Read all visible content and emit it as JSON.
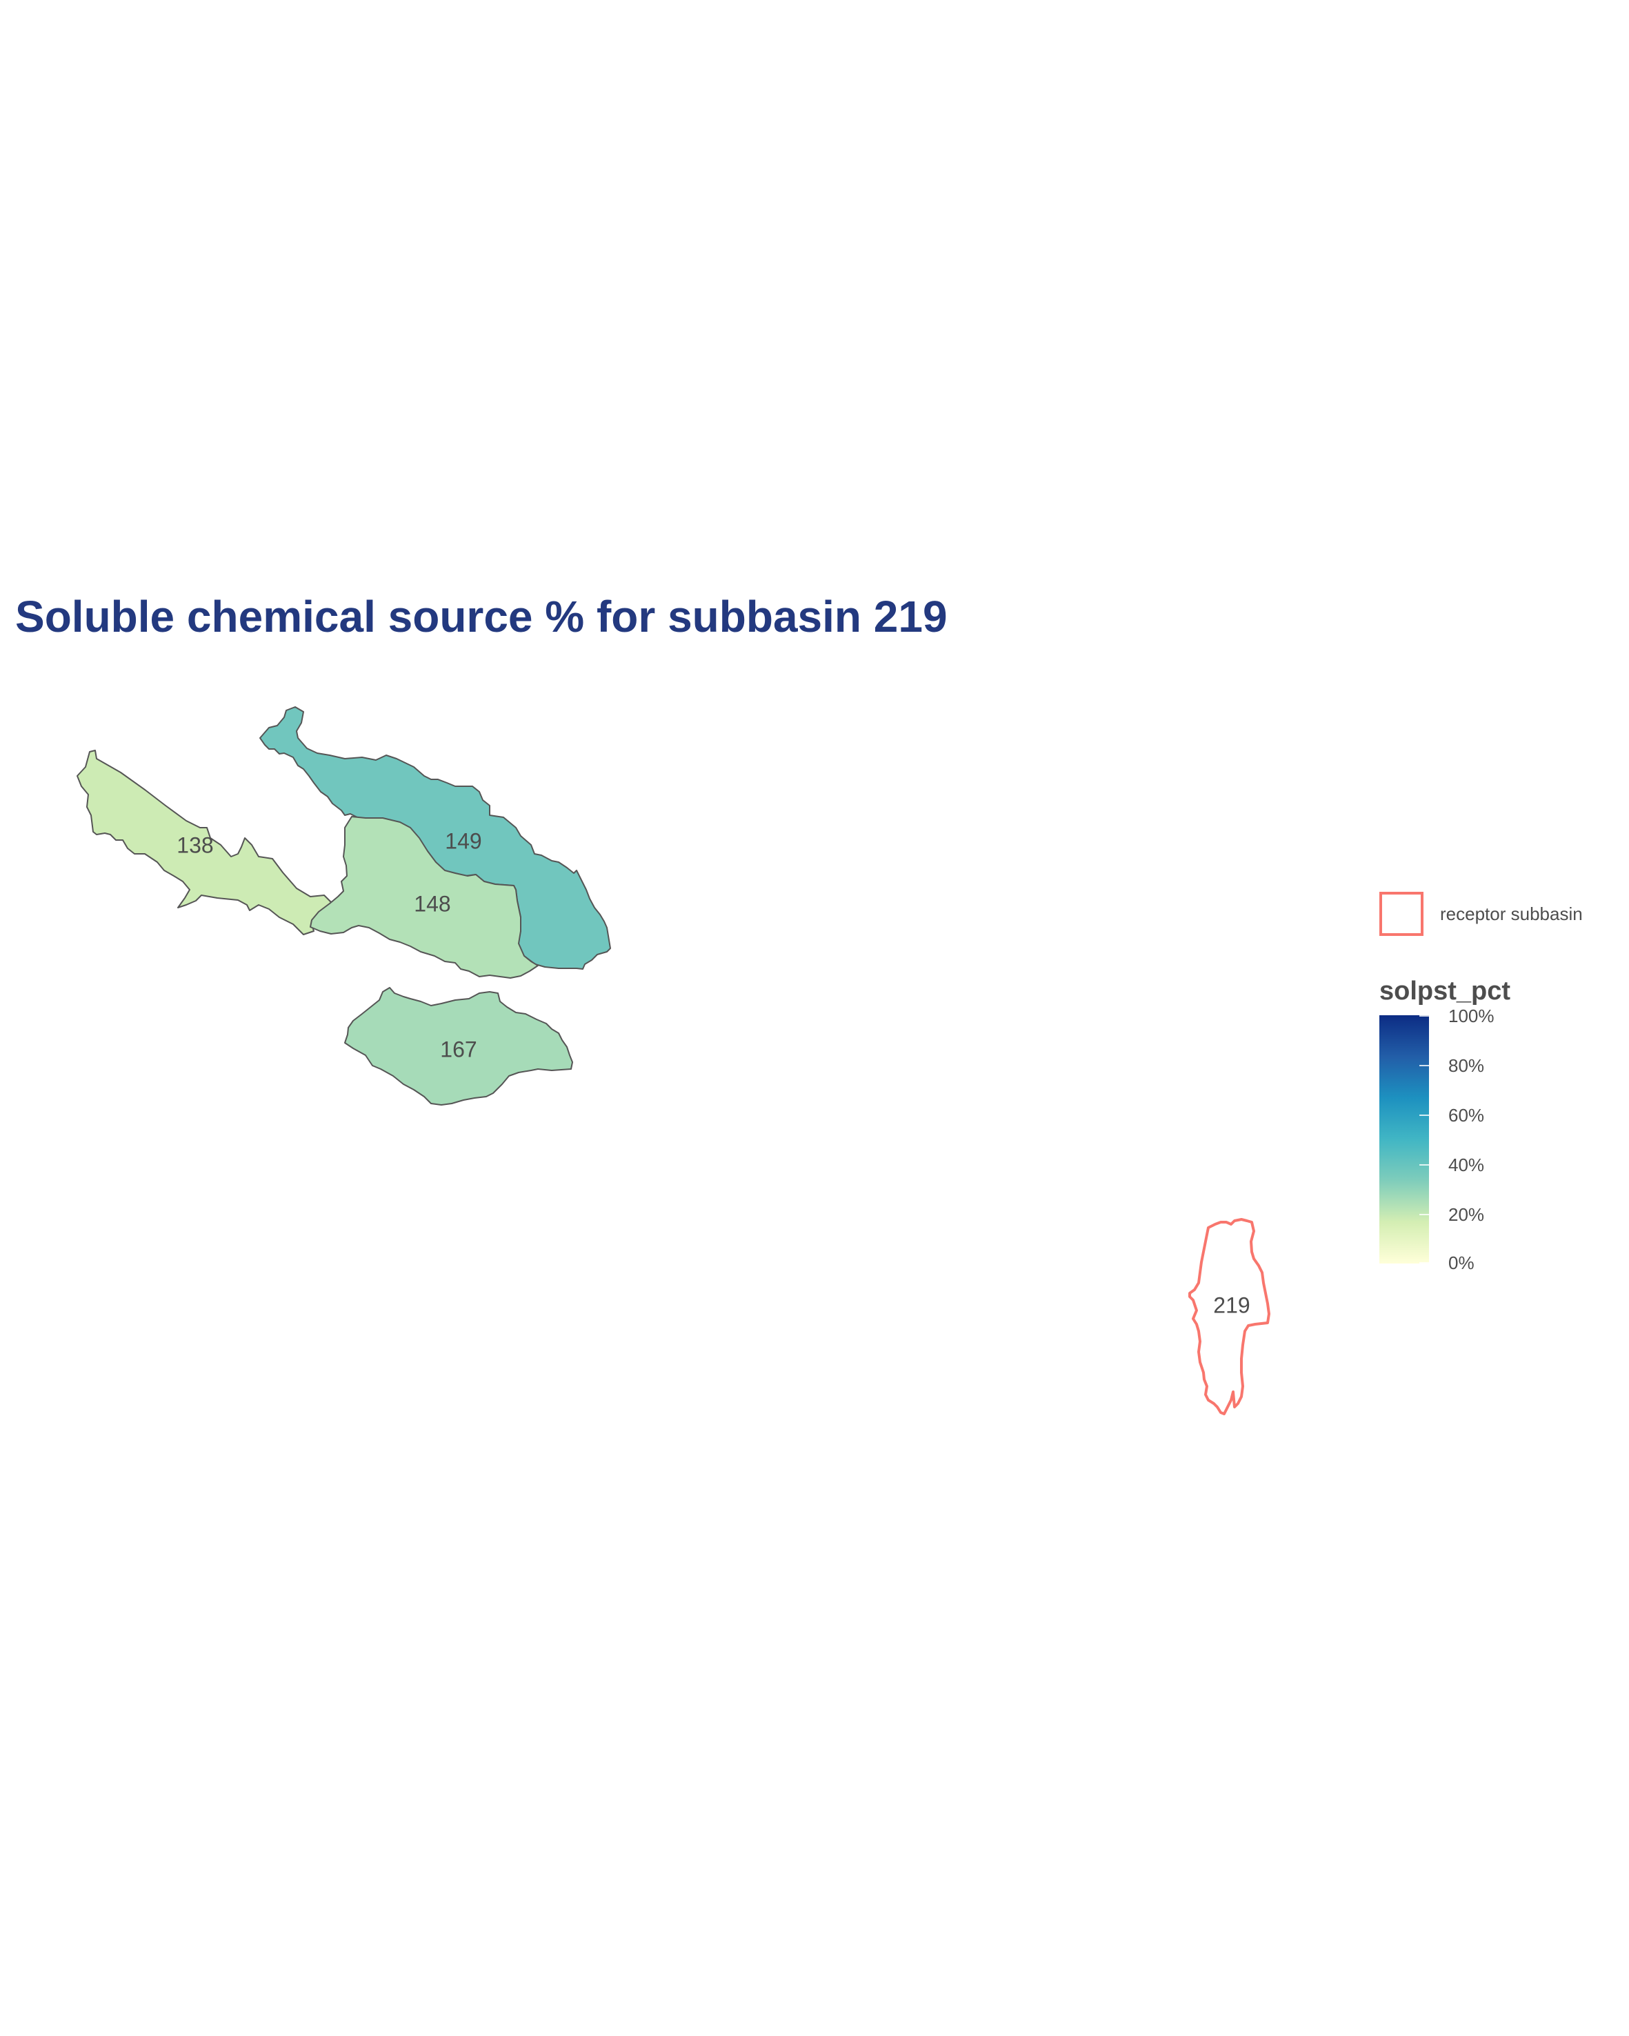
{
  "title": "Soluble chemical source % for subbasin 219",
  "colors": {
    "title": "#23397f",
    "receptor_outline": "#f8766d",
    "region_outline": "#555555",
    "label": "#4d4d4d"
  },
  "regions": [
    {
      "id": "138",
      "label": "138",
      "fill": "#cdebb4"
    },
    {
      "id": "149",
      "label": "149",
      "fill": "#71c6be"
    },
    {
      "id": "148",
      "label": "148",
      "fill": "#b3e1b7"
    },
    {
      "id": "167",
      "label": "167",
      "fill": "#a6dbb8"
    },
    {
      "id": "219",
      "label": "219",
      "fill": "none"
    }
  ],
  "legend": {
    "receptor_label": "receptor subbasin",
    "scale_title": "solpst_pct",
    "scale_colors": [
      "#ffffd9",
      "#d4eeb3",
      "#7fcdbb",
      "#41b6c4",
      "#1d91c0",
      "#225ea8",
      "#0c2c84"
    ],
    "ticks": [
      "100%",
      "80%",
      "60%",
      "40%",
      "20%",
      "0%"
    ]
  }
}
